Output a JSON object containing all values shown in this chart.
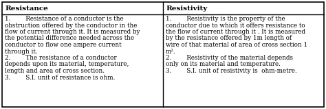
{
  "col1_header": "Resistance",
  "col2_header": "Resistivity",
  "col1_lines": [
    "1.        Resistance of a conductor is the",
    "obstruction offered by the conductor in the",
    "flow of current through it. It is measured by",
    "the potential difference needed across the",
    "conductor to flow one ampere current",
    "through it.",
    "2.        The resistance of a conductor",
    "depends upon its material, temperature,",
    "length and area of cross section.",
    "3.        S.I. unit of resistance is ohm."
  ],
  "col2_lines": [
    "1.        Resistivity is the property of the",
    "conductor due to which it offers resistance to",
    "the flow of current through it . It is measured",
    "by the resistance offered by 1m length of",
    "wire of that material of area of cross section 1",
    "m².",
    "2.        Resistivity of the material depends",
    "only on its material and temperature.",
    "3.        S.I. unit of resistivity is  ohm-metre."
  ],
  "bg_color": "#ffffff",
  "border_color": "#000000",
  "header_font_size": 7.5,
  "body_font_size": 6.3,
  "figsize": [
    4.74,
    1.59
  ],
  "dpi": 100,
  "col_split": 0.5
}
